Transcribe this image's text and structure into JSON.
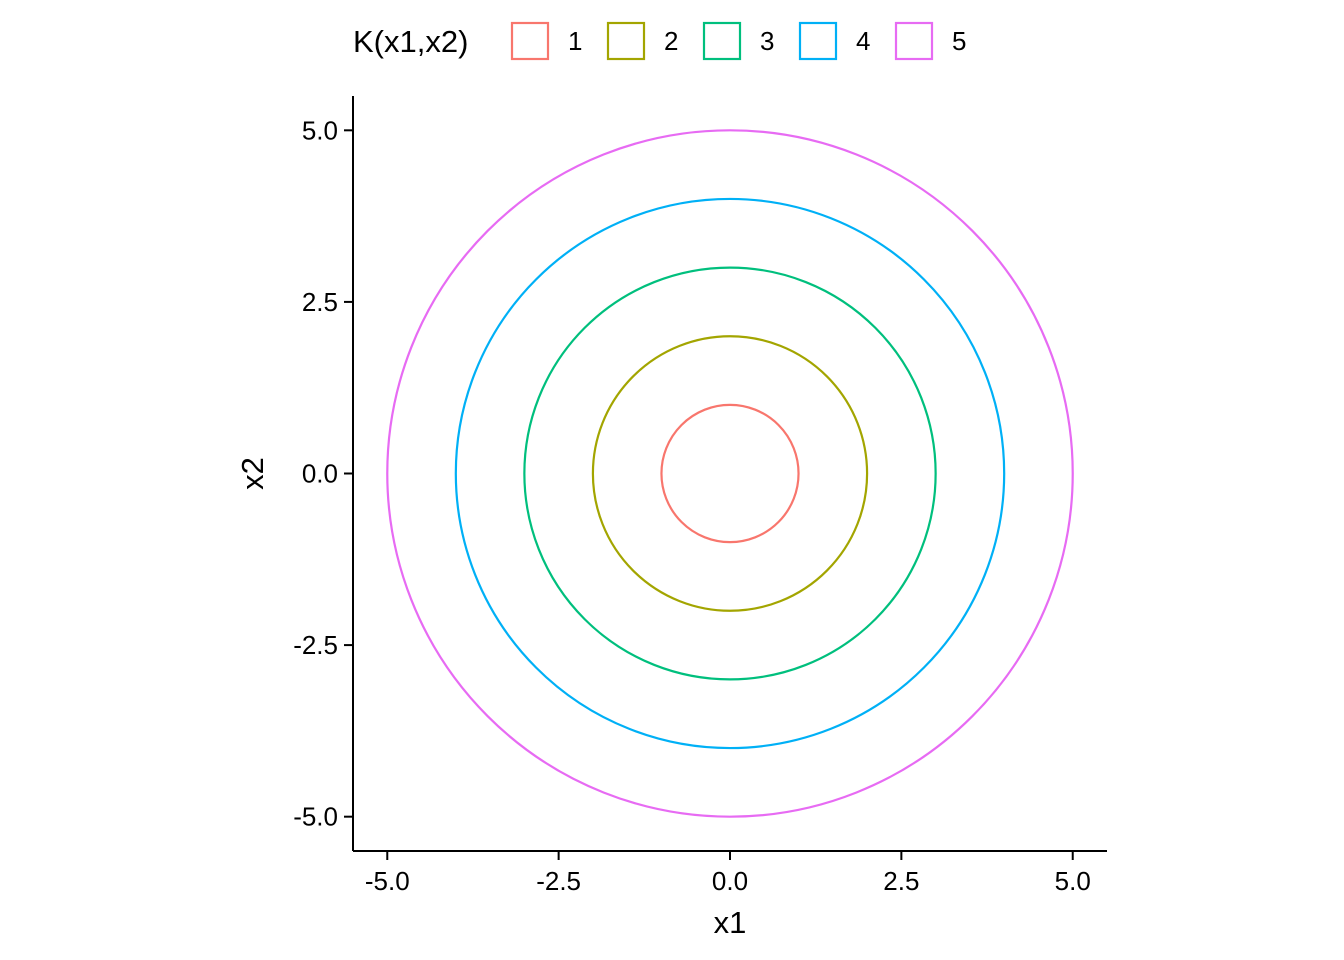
{
  "chart_data": {
    "type": "line",
    "subtype": "contour",
    "xlabel": "x1",
    "ylabel": "x2",
    "xlim": [
      -5.5,
      5.5
    ],
    "ylim": [
      -5.5,
      5.5
    ],
    "x_ticks": [
      -5.0,
      -2.5,
      0.0,
      2.5,
      5.0
    ],
    "y_ticks": [
      -5.0,
      -2.5,
      0.0,
      2.5,
      5.0
    ],
    "x_tick_labels": [
      "-5.0",
      "-2.5",
      "0.0",
      "2.5",
      "5.0"
    ],
    "y_tick_labels": [
      "-5.0",
      "-2.5",
      "0.0",
      "2.5",
      "5.0"
    ],
    "grid": false,
    "legend": {
      "title": "K(x1,x2)",
      "position": "top"
    },
    "series": [
      {
        "name": "1",
        "color": "#F8766D",
        "center": [
          0,
          0
        ],
        "radius": 1
      },
      {
        "name": "2",
        "color": "#A3A500",
        "center": [
          0,
          0
        ],
        "radius": 2
      },
      {
        "name": "3",
        "color": "#00BF7D",
        "center": [
          0,
          0
        ],
        "radius": 3
      },
      {
        "name": "4",
        "color": "#00B0F6",
        "center": [
          0,
          0
        ],
        "radius": 4
      },
      {
        "name": "5",
        "color": "#E76BF3",
        "center": [
          0,
          0
        ],
        "radius": 5
      }
    ]
  }
}
